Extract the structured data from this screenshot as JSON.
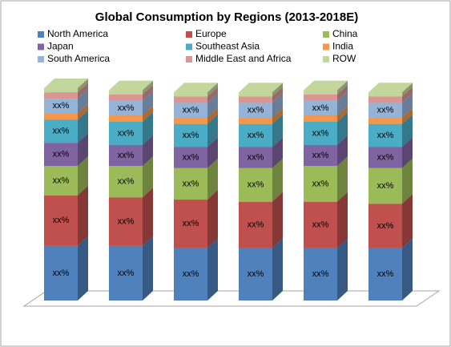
{
  "chart_data": {
    "type": "bar",
    "stacked": true,
    "title": "Global Consumption by Regions  (2013-2018E)",
    "categories": [
      null,
      null,
      null,
      null,
      null,
      null
    ],
    "series": [
      {
        "name": "North America",
        "color": "#4f81bd",
        "values": [
          26,
          26,
          25,
          25,
          25,
          25
        ],
        "value_labels": [
          "xx%",
          "xx%",
          "xx%",
          "xx%",
          "xx%",
          "xx%"
        ]
      },
      {
        "name": "Europe",
        "color": "#c0504d",
        "values": [
          24,
          23,
          23,
          22,
          22,
          21
        ],
        "value_labels": [
          "xx%",
          "xx%",
          "xx%",
          "xx%",
          "xx%",
          "xx%"
        ]
      },
      {
        "name": "China",
        "color": "#9bbb59",
        "values": [
          14,
          15,
          15,
          16,
          17,
          17
        ],
        "value_labels": [
          "xx%",
          "xx%",
          "xx%",
          "xx%",
          "xx%",
          "xx%"
        ]
      },
      {
        "name": "Japan",
        "color": "#8064a2",
        "values": [
          11,
          10,
          10,
          10,
          10,
          10
        ],
        "value_labels": [
          "xx%",
          "xx%",
          "xx%",
          "xx%",
          "xx%",
          "xx%"
        ]
      },
      {
        "name": "Southeast Asia",
        "color": "#4bacc6",
        "values": [
          11,
          11,
          11,
          11,
          11,
          11
        ],
        "value_labels": [
          "xx%",
          "xx%",
          "xx%",
          "xx%",
          "xx%",
          "xx%"
        ]
      },
      {
        "name": "India",
        "color": "#f79646",
        "values": [
          3,
          3,
          3,
          3,
          3,
          3
        ]
      },
      {
        "name": "South America",
        "color": "#95b3d7",
        "values": [
          7,
          7,
          7,
          7,
          7,
          7
        ],
        "value_labels": [
          "xx%",
          "xx%",
          "xx%",
          "xx%",
          "xx%",
          "xx%"
        ]
      },
      {
        "name": "Middle East and Africa",
        "color": "#d99694",
        "values": [
          3,
          3,
          3,
          3,
          3,
          3
        ]
      },
      {
        "name": "ROW",
        "color": "#c3d69b",
        "values": [
          2,
          2,
          2,
          2,
          2,
          2
        ]
      }
    ]
  }
}
